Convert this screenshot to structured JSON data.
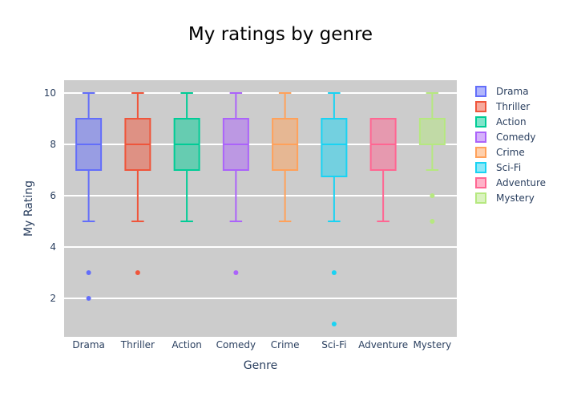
{
  "chart_data": {
    "type": "box",
    "title": "My ratings by genre",
    "xlabel": "Genre",
    "ylabel": "My Rating",
    "ylim": [
      0.5,
      10.5
    ],
    "yticks": [
      2,
      4,
      6,
      8,
      10
    ],
    "grid": true,
    "legend_position": "right",
    "plot_bgcolor": "#cccccc",
    "series": [
      {
        "name": "Drama",
        "color": "#636efa",
        "whisker_low": 5,
        "q1": 7,
        "median": 8,
        "q3": 9,
        "whisker_high": 10,
        "outliers": [
          3,
          2
        ]
      },
      {
        "name": "Thriller",
        "color": "#ef553b",
        "whisker_low": 5,
        "q1": 7,
        "median": 8,
        "q3": 9,
        "whisker_high": 10,
        "outliers": [
          3
        ]
      },
      {
        "name": "Action",
        "color": "#00cc96",
        "whisker_low": 5,
        "q1": 7,
        "median": 8,
        "q3": 9,
        "whisker_high": 10,
        "outliers": []
      },
      {
        "name": "Comedy",
        "color": "#ab63fa",
        "whisker_low": 5,
        "q1": 7,
        "median": 8,
        "q3": 9,
        "whisker_high": 10,
        "outliers": [
          3
        ]
      },
      {
        "name": "Crime",
        "color": "#ffa15a",
        "whisker_low": 5,
        "q1": 7,
        "median": 8,
        "q3": 9,
        "whisker_high": 10,
        "outliers": []
      },
      {
        "name": "Sci-Fi",
        "color": "#19d3f3",
        "whisker_low": 5,
        "q1": 6.75,
        "median": 8,
        "q3": 9,
        "whisker_high": 10,
        "outliers": [
          3,
          1
        ]
      },
      {
        "name": "Adventure",
        "color": "#ff6692",
        "whisker_low": 5,
        "q1": 7,
        "median": 8,
        "q3": 9,
        "whisker_high": 9,
        "outliers": []
      },
      {
        "name": "Mystery",
        "color": "#b6e880",
        "whisker_low": 7,
        "q1": 8,
        "median": 8,
        "q3": 9,
        "whisker_high": 10,
        "outliers": [
          6,
          5
        ]
      }
    ]
  }
}
